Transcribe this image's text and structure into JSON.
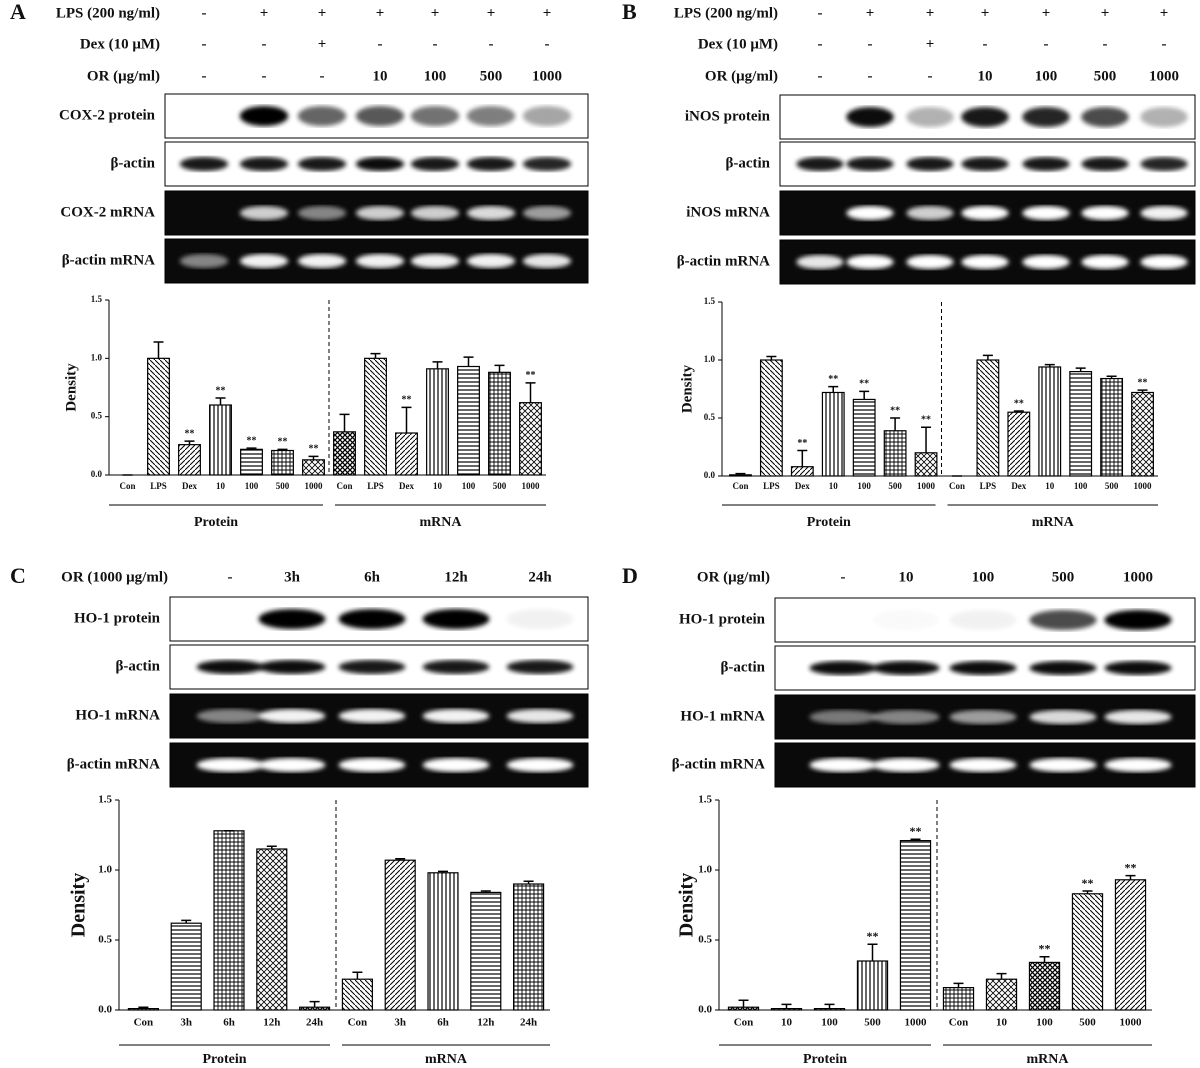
{
  "chart_data": [
    {
      "type": "bar",
      "panel": "A",
      "treatments": [
        {
          "label": "LPS (200 ng/ml)",
          "cells": [
            "-",
            "+",
            "+",
            "+",
            "+",
            "+",
            "+"
          ]
        },
        {
          "label": "Dex (10 μM)",
          "cells": [
            "-",
            "-",
            "+",
            "-",
            "-",
            "-",
            "-"
          ]
        },
        {
          "label": "OR (μg/ml)",
          "cells": [
            "-",
            "-",
            "-",
            "10",
            "100",
            "500",
            "1000"
          ]
        }
      ],
      "blots": [
        "COX-2 protein",
        "β-actin",
        "COX-2 mRNA",
        "β-actin mRNA"
      ],
      "ylabel": "Density",
      "groups": [
        "Protein",
        "mRNA"
      ],
      "categories": [
        "Con",
        "LPS",
        "Dex",
        "10",
        "100",
        "500",
        "1000",
        "Con",
        "LPS",
        "Dex",
        "10",
        "100",
        "500",
        "1000"
      ],
      "values": [
        0,
        1.0,
        0.26,
        0.6,
        0.22,
        0.21,
        0.13,
        0.37,
        1.0,
        0.36,
        0.91,
        0.93,
        0.88,
        0.62
      ],
      "errors": [
        0,
        0.14,
        0.03,
        0.06,
        0.01,
        0.01,
        0.03,
        0.15,
        0.04,
        0.22,
        0.06,
        0.08,
        0.06,
        0.17
      ],
      "sig": [
        null,
        null,
        "**",
        "**",
        "**",
        "**",
        "**",
        null,
        null,
        "**",
        null,
        null,
        null,
        "**"
      ],
      "ylim": [
        0,
        1.5
      ],
      "yticks": [
        {
          "value": 0,
          "label": "0.0"
        },
        {
          "value": 0.5,
          "label": "0.5"
        },
        {
          "value": 1,
          "label": "1.0"
        },
        {
          "value": 1.5,
          "label": "1.5"
        }
      ]
    },
    {
      "type": "bar",
      "panel": "B",
      "treatments": [
        {
          "label": "LPS (200 ng/ml)",
          "cells": [
            "-",
            "+",
            "+",
            "+",
            "+",
            "+",
            "+"
          ]
        },
        {
          "label": "Dex (10 μM)",
          "cells": [
            "-",
            "-",
            "+",
            "-",
            "-",
            "-",
            "-"
          ]
        },
        {
          "label": "OR (μg/ml)",
          "cells": [
            "-",
            "-",
            "-",
            "10",
            "100",
            "500",
            "1000"
          ]
        }
      ],
      "blots": [
        "iNOS protein",
        "β-actin",
        "iNOS mRNA",
        "β-actin mRNA"
      ],
      "ylabel": "Density",
      "groups": [
        "Protein",
        "mRNA"
      ],
      "categories": [
        "Con",
        "LPS",
        "Dex",
        "10",
        "100",
        "500",
        "1000",
        "Con",
        "LPS",
        "Dex",
        "10",
        "100",
        "500",
        "1000"
      ],
      "values": [
        0.01,
        1.0,
        0.08,
        0.72,
        0.66,
        0.39,
        0.2,
        0,
        1.0,
        0.55,
        0.94,
        0.9,
        0.84,
        0.72
      ],
      "errors": [
        0.01,
        0.03,
        0.14,
        0.05,
        0.07,
        0.11,
        0.22,
        0,
        0.04,
        0.01,
        0.02,
        0.03,
        0.02,
        0.02
      ],
      "sig": [
        null,
        null,
        "**",
        "**",
        "**",
        "**",
        "**",
        null,
        null,
        "**",
        null,
        null,
        null,
        "**"
      ],
      "ylim": [
        0,
        1.5
      ],
      "yticks": [
        {
          "value": 0,
          "label": "0.0"
        },
        {
          "value": 0.5,
          "label": "0.5"
        },
        {
          "value": 1,
          "label": "1.0"
        },
        {
          "value": 1.5,
          "label": "1.5"
        }
      ]
    },
    {
      "type": "bar",
      "panel": "C",
      "treatments": [
        {
          "label": "OR (1000 μg/ml)",
          "cells": [
            "-",
            "3h",
            "6h",
            "12h",
            "24h"
          ]
        }
      ],
      "blots": [
        "HO-1 protein",
        "β-actin",
        "HO-1 mRNA",
        "β-actin mRNA"
      ],
      "ylabel": "Density",
      "groups": [
        "Protein",
        "mRNA"
      ],
      "categories": [
        "Con",
        "3h",
        "6h",
        "12h",
        "24h",
        "Con",
        "3h",
        "6h",
        "12h",
        "24h"
      ],
      "values": [
        0.01,
        0.62,
        1.28,
        1.15,
        0.02,
        0.22,
        1.07,
        0.98,
        0.84,
        0.9
      ],
      "errors": [
        0.01,
        0.02,
        0,
        0.02,
        0.04,
        0.05,
        0.01,
        0.01,
        0.01,
        0.02
      ],
      "sig": [
        null,
        null,
        null,
        null,
        null,
        null,
        null,
        null,
        null,
        null
      ],
      "ylim": [
        0,
        1.5
      ],
      "yticks": [
        {
          "value": 0,
          "label": "0.0"
        },
        {
          "value": 0.5,
          "label": "0.5"
        },
        {
          "value": 1,
          "label": "1.0"
        },
        {
          "value": 1.5,
          "label": "1.5"
        }
      ]
    },
    {
      "type": "bar",
      "panel": "D",
      "treatments": [
        {
          "label": "OR (μg/ml)",
          "cells": [
            "-",
            "10",
            "100",
            "500",
            "1000"
          ]
        }
      ],
      "blots": [
        "HO-1 protein",
        "β-actin",
        "HO-1 mRNA",
        "β-actin mRNA"
      ],
      "ylabel": "Density",
      "groups": [
        "Protein",
        "mRNA"
      ],
      "categories": [
        "Con",
        "10",
        "100",
        "500",
        "1000",
        "Con",
        "10",
        "100",
        "500",
        "1000"
      ],
      "values": [
        0.02,
        0.01,
        0.01,
        0.35,
        1.21,
        0.16,
        0.22,
        0.34,
        0.83,
        0.93
      ],
      "errors": [
        0.05,
        0.03,
        0.03,
        0.12,
        0.01,
        0.03,
        0.04,
        0.04,
        0.02,
        0.03
      ],
      "sig": [
        null,
        null,
        null,
        "**",
        "**",
        null,
        null,
        "**",
        "**",
        "**"
      ],
      "ylim": [
        0,
        1.5
      ],
      "yticks": [
        {
          "value": 0,
          "label": "0.0"
        },
        {
          "value": 0.5,
          "label": "0.5"
        },
        {
          "value": 1,
          "label": "1.0"
        },
        {
          "value": 1.5,
          "label": "1.5"
        }
      ]
    }
  ]
}
